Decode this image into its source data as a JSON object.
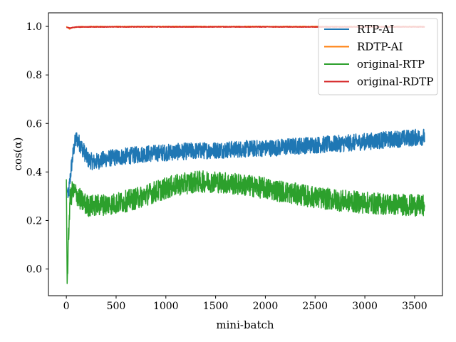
{
  "chart_data": {
    "type": "line",
    "title": "",
    "xlabel": "mini-batch",
    "ylabel": "cos(α)",
    "xlim": [
      -180,
      3780
    ],
    "ylim": [
      -0.11,
      1.056
    ],
    "xticks": [
      0,
      500,
      1000,
      1500,
      2000,
      2500,
      3000,
      3500
    ],
    "yticks": [
      0.0,
      0.2,
      0.4,
      0.6,
      0.8,
      1.0
    ],
    "ytick_labels": [
      "0.0",
      "0.2",
      "0.4",
      "0.6",
      "0.8",
      "1.0"
    ],
    "grid": false,
    "legend_position": "top-right",
    "series": [
      {
        "name": "RTP-AI",
        "color": "#1f77b4",
        "noise": 0.035,
        "points": [
          [
            0,
            0.34
          ],
          [
            20,
            0.3
          ],
          [
            50,
            0.42
          ],
          [
            80,
            0.51
          ],
          [
            100,
            0.54
          ],
          [
            130,
            0.52
          ],
          [
            170,
            0.49
          ],
          [
            220,
            0.45
          ],
          [
            280,
            0.44
          ],
          [
            400,
            0.455
          ],
          [
            600,
            0.465
          ],
          [
            800,
            0.475
          ],
          [
            1000,
            0.48
          ],
          [
            1200,
            0.485
          ],
          [
            1500,
            0.49
          ],
          [
            1800,
            0.495
          ],
          [
            2100,
            0.5
          ],
          [
            2400,
            0.51
          ],
          [
            2700,
            0.515
          ],
          [
            3000,
            0.525
          ],
          [
            3300,
            0.535
          ],
          [
            3600,
            0.545
          ]
        ]
      },
      {
        "name": "RDTP-AI",
        "color": "#ff7f0e",
        "noise": 0.002,
        "points": [
          [
            0,
            1.0
          ],
          [
            30,
            0.99
          ],
          [
            60,
            0.995
          ],
          [
            120,
            0.998
          ],
          [
            300,
            0.999
          ],
          [
            3600,
            0.999
          ]
        ]
      },
      {
        "name": "original-RTP",
        "color": "#2ca02c",
        "noise": 0.045,
        "points": [
          [
            0,
            0.37
          ],
          [
            8,
            -0.06
          ],
          [
            20,
            0.1
          ],
          [
            35,
            0.28
          ],
          [
            60,
            0.32
          ],
          [
            100,
            0.31
          ],
          [
            150,
            0.28
          ],
          [
            220,
            0.26
          ],
          [
            350,
            0.265
          ],
          [
            500,
            0.27
          ],
          [
            700,
            0.29
          ],
          [
            900,
            0.32
          ],
          [
            1100,
            0.345
          ],
          [
            1300,
            0.36
          ],
          [
            1500,
            0.36
          ],
          [
            1700,
            0.35
          ],
          [
            1900,
            0.34
          ],
          [
            2100,
            0.325
          ],
          [
            2300,
            0.31
          ],
          [
            2500,
            0.295
          ],
          [
            2800,
            0.28
          ],
          [
            3100,
            0.27
          ],
          [
            3400,
            0.265
          ],
          [
            3600,
            0.26
          ]
        ]
      },
      {
        "name": "original-RDTP",
        "color": "#d62728",
        "noise": 0.0015,
        "points": [
          [
            0,
            0.996
          ],
          [
            40,
            0.993
          ],
          [
            80,
            0.997
          ],
          [
            200,
            0.998
          ],
          [
            3600,
            0.998
          ]
        ]
      }
    ]
  }
}
